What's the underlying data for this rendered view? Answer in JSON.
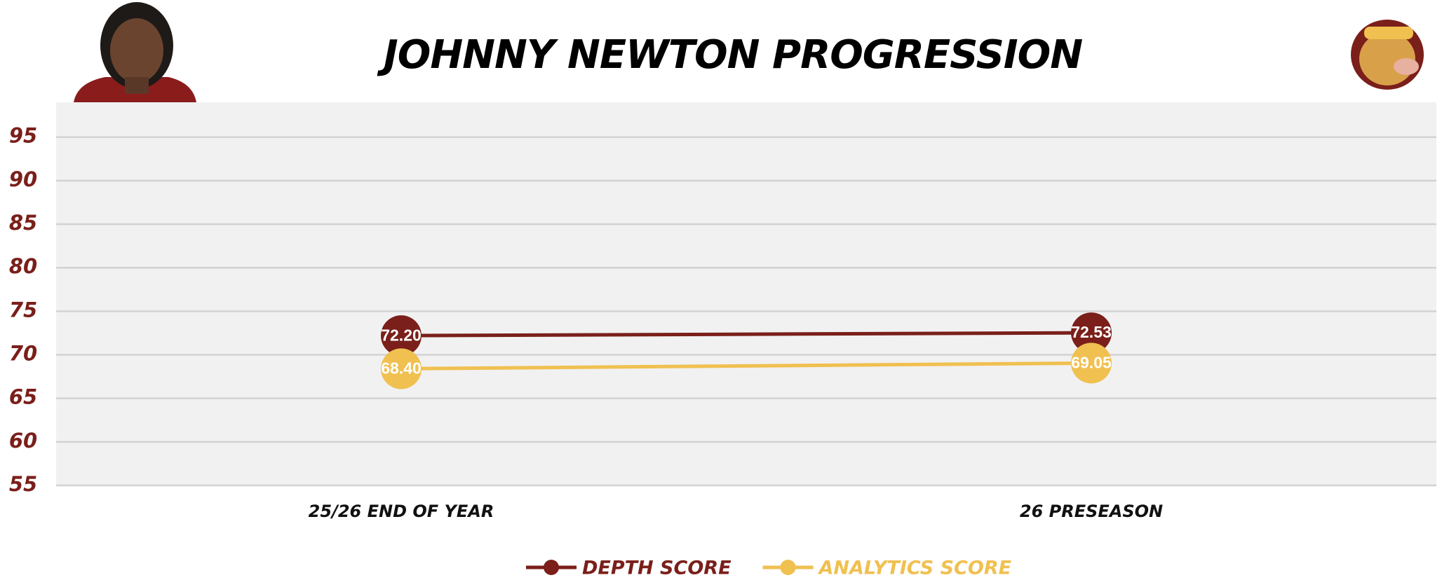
{
  "chart_data": {
    "type": "line",
    "title": "JOHNNY NEWTON PROGRESSION",
    "categories": [
      "25/26 END OF YEAR",
      "26 PRESEASON"
    ],
    "series": [
      {
        "name": "DEPTH SCORE",
        "color": "#7a1f1a",
        "values": [
          72.2,
          72.53
        ],
        "value_labels": [
          "72.20",
          "72.53"
        ]
      },
      {
        "name": "ANALYTICS SCORE",
        "color": "#f0c050",
        "values": [
          68.4,
          69.05
        ],
        "value_labels": [
          "68.40",
          "69.05"
        ]
      }
    ],
    "ylim": [
      55,
      99
    ],
    "yticks": [
      55,
      60,
      65,
      70,
      75,
      80,
      85,
      90,
      95
    ],
    "grid": true
  }
}
